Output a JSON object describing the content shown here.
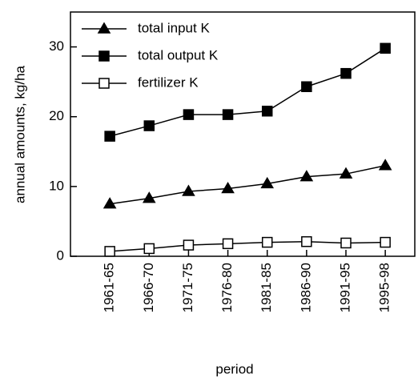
{
  "chart_data": {
    "type": "line",
    "y_label": "annual amounts, kg/ha",
    "x_label": "period",
    "categories": [
      "1961-65",
      "1966-70",
      "1971-75",
      "1976-80",
      "1981-85",
      "1986-90",
      "1991-95",
      "1995-98"
    ],
    "series": [
      {
        "name": "total input K",
        "color": "#000000",
        "marker": "triangle",
        "values": [
          7.5,
          8.3,
          9.3,
          9.7,
          10.4,
          11.4,
          11.8,
          13.0
        ]
      },
      {
        "name": "total output K",
        "color": "#000000",
        "marker": "square",
        "values": [
          17.2,
          18.7,
          20.3,
          20.3,
          20.8,
          24.3,
          26.2,
          29.8
        ]
      },
      {
        "name": "fertilizer K",
        "color": "#000000",
        "marker": "open-square",
        "values": [
          0.7,
          1.1,
          1.6,
          1.8,
          2.0,
          2.1,
          1.9,
          2.0
        ]
      }
    ],
    "ylim": [
      0,
      35
    ],
    "yticks": [
      0,
      10,
      20,
      30
    ],
    "legend": "upper-left"
  }
}
